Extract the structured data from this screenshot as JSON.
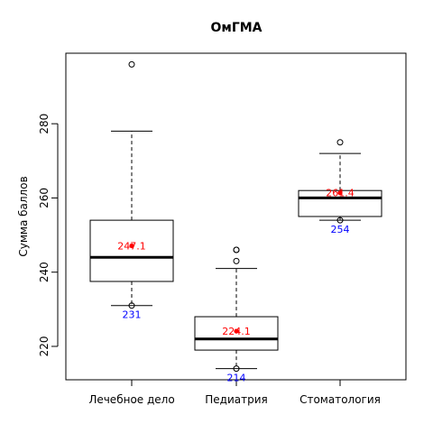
{
  "chart_data": {
    "type": "boxplot",
    "title": "ОмГМА",
    "ylabel": "Сумма баллов",
    "xlabel": "",
    "ylim": [
      211,
      299
    ],
    "yticks": [
      220,
      240,
      260,
      280
    ],
    "grid": false,
    "categories": [
      "Лечебное дело",
      "Педиатрия",
      "Стоматология"
    ],
    "boxes": [
      {
        "category": "Лечебное дело",
        "whisker_low": 231,
        "q1": 237.5,
        "median": 244,
        "q3": 254,
        "whisker_high": 278,
        "outliers": [
          296,
          231
        ],
        "mean": 247.1,
        "mean_label": "247.1",
        "min_label": "231"
      },
      {
        "category": "Педиатрия",
        "whisker_low": 214,
        "q1": 219,
        "median": 222,
        "q3": 228,
        "whisker_high": 241,
        "outliers": [
          243,
          246,
          246,
          214
        ],
        "mean": 224.1,
        "mean_label": "224.1",
        "min_label": "214"
      },
      {
        "category": "Стоматология",
        "whisker_low": 254,
        "q1": 255,
        "median": 260,
        "q3": 262,
        "whisker_high": 272,
        "outliers": [
          275,
          254
        ],
        "mean": 261.4,
        "mean_label": "261.4",
        "min_label": "254"
      }
    ],
    "colors": {
      "mean": "#ff0000",
      "min_label": "#0000ff",
      "box": "#000000"
    }
  }
}
